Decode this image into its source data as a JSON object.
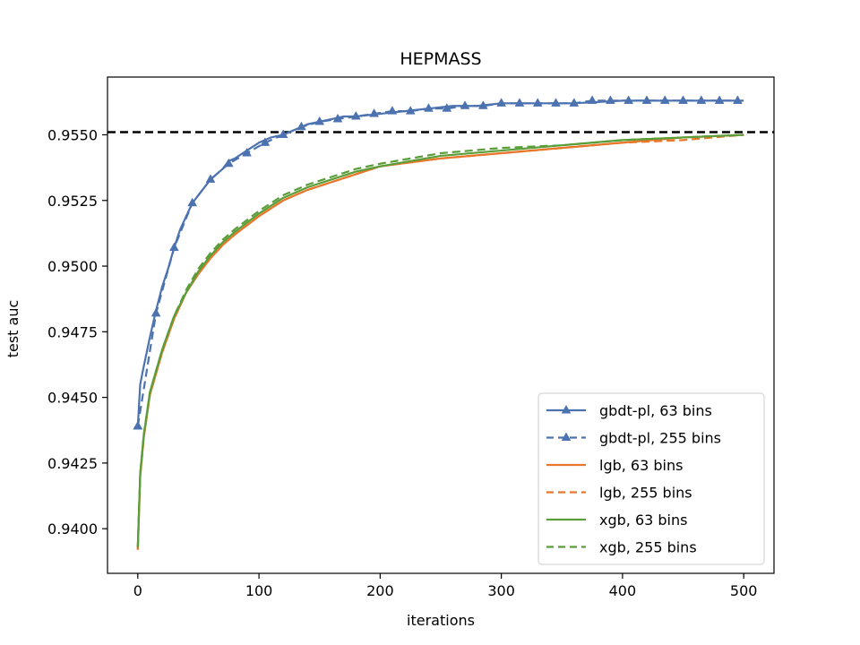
{
  "chart_data": {
    "type": "line",
    "title": "HEPMASS",
    "xlabel": "iterations",
    "ylabel": "test auc",
    "xlim": [
      -25,
      525
    ],
    "ylim": [
      0.9383,
      0.9572
    ],
    "xticks": [
      0,
      100,
      200,
      300,
      400,
      500
    ],
    "yticks": [
      0.94,
      0.9425,
      0.945,
      0.9475,
      0.95,
      0.9525,
      0.955
    ],
    "ytick_labels": [
      "0.9400",
      "0.9425",
      "0.9450",
      "0.9475",
      "0.9500",
      "0.9525",
      "0.9550"
    ],
    "grid": false,
    "legend_position": "lower-right",
    "reference_line": {
      "y": 0.9551,
      "style": "dashed",
      "color": "#000000"
    },
    "series": [
      {
        "name": "gbdt-pl, 63 bins",
        "color": "#4c72b0",
        "dash": "solid",
        "marker": "triangle",
        "x": [
          0,
          2,
          5,
          10,
          15,
          20,
          25,
          30,
          35,
          40,
          45,
          50,
          60,
          70,
          75,
          80,
          90,
          100,
          110,
          120,
          130,
          140,
          150,
          160,
          170,
          180,
          200,
          220,
          240,
          260,
          280,
          300,
          330,
          360,
          400,
          450,
          500
        ],
        "y": [
          0.9439,
          0.9455,
          0.9462,
          0.9473,
          0.9483,
          0.9492,
          0.9499,
          0.9507,
          0.9514,
          0.9519,
          0.9524,
          0.9527,
          0.9533,
          0.9537,
          0.954,
          0.9541,
          0.9544,
          0.9547,
          0.9549,
          0.955,
          0.9552,
          0.9554,
          0.9555,
          0.9556,
          0.9557,
          0.9557,
          0.9558,
          0.9559,
          0.956,
          0.9561,
          0.9561,
          0.9562,
          0.9562,
          0.9562,
          0.9563,
          0.9563,
          0.9563
        ]
      },
      {
        "name": "gbdt-pl, 255 bins",
        "color": "#4c72b0",
        "dash": "dashed",
        "marker": "triangle",
        "x": [
          0,
          15,
          30,
          45,
          60,
          75,
          90,
          105,
          120,
          135,
          150,
          165,
          180,
          195,
          210,
          225,
          240,
          255,
          270,
          285,
          300,
          315,
          330,
          345,
          360,
          375,
          390,
          405,
          420,
          435,
          450,
          465,
          480,
          495
        ],
        "y": [
          0.9439,
          0.9482,
          0.9507,
          0.9524,
          0.9533,
          0.9539,
          0.9543,
          0.9547,
          0.955,
          0.9553,
          0.9555,
          0.9556,
          0.9557,
          0.9558,
          0.9559,
          0.9559,
          0.956,
          0.956,
          0.9561,
          0.9561,
          0.9562,
          0.9562,
          0.9562,
          0.9562,
          0.9562,
          0.9563,
          0.9563,
          0.9563,
          0.9563,
          0.9563,
          0.9563,
          0.9563,
          0.9563,
          0.9563
        ]
      },
      {
        "name": "lgb, 63 bins",
        "color": "#e8762b",
        "dash": "solid",
        "marker": "none",
        "x": [
          0,
          2,
          5,
          10,
          20,
          30,
          40,
          50,
          60,
          70,
          80,
          100,
          120,
          140,
          160,
          180,
          200,
          250,
          300,
          350,
          400,
          450,
          500
        ],
        "y": [
          0.9392,
          0.942,
          0.9435,
          0.9451,
          0.9467,
          0.948,
          0.949,
          0.9497,
          0.9503,
          0.9508,
          0.9512,
          0.9519,
          0.9525,
          0.9529,
          0.9532,
          0.9535,
          0.9538,
          0.9541,
          0.9543,
          0.9545,
          0.9547,
          0.9549,
          0.955
        ]
      },
      {
        "name": "lgb, 255 bins",
        "color": "#e8762b",
        "dash": "dashed",
        "marker": "none",
        "x": [
          0,
          2,
          5,
          10,
          20,
          30,
          40,
          50,
          60,
          70,
          80,
          100,
          120,
          140,
          160,
          180,
          200,
          250,
          300,
          350,
          400,
          450,
          500
        ],
        "y": [
          0.9392,
          0.942,
          0.9435,
          0.9451,
          0.9467,
          0.948,
          0.949,
          0.9497,
          0.9503,
          0.9508,
          0.9512,
          0.9519,
          0.9525,
          0.9529,
          0.9532,
          0.9535,
          0.9538,
          0.9541,
          0.9543,
          0.9545,
          0.9547,
          0.9548,
          0.955
        ]
      },
      {
        "name": "xgb, 63 bins",
        "color": "#5a9e3a",
        "dash": "solid",
        "marker": "none",
        "x": [
          0,
          2,
          5,
          10,
          20,
          30,
          40,
          50,
          60,
          70,
          80,
          100,
          120,
          140,
          160,
          180,
          200,
          250,
          300,
          350,
          400,
          450,
          500
        ],
        "y": [
          0.9393,
          0.9421,
          0.9436,
          0.9452,
          0.9468,
          0.9481,
          0.949,
          0.9498,
          0.9504,
          0.9509,
          0.9513,
          0.952,
          0.9526,
          0.953,
          0.9533,
          0.9536,
          0.9538,
          0.9542,
          0.9544,
          0.9546,
          0.9548,
          0.9549,
          0.955
        ]
      },
      {
        "name": "xgb, 255 bins",
        "color": "#5a9e3a",
        "dash": "dashed",
        "marker": "none",
        "x": [
          0,
          2,
          5,
          10,
          20,
          30,
          40,
          50,
          60,
          70,
          80,
          100,
          120,
          140,
          160,
          180,
          200,
          250,
          300,
          350,
          400,
          450,
          500
        ],
        "y": [
          0.9393,
          0.9421,
          0.9436,
          0.9452,
          0.9468,
          0.9481,
          0.9491,
          0.9499,
          0.9505,
          0.951,
          0.9514,
          0.9521,
          0.9527,
          0.9531,
          0.9534,
          0.9537,
          0.9539,
          0.9543,
          0.9545,
          0.9546,
          0.9548,
          0.9549,
          0.955
        ]
      }
    ]
  }
}
